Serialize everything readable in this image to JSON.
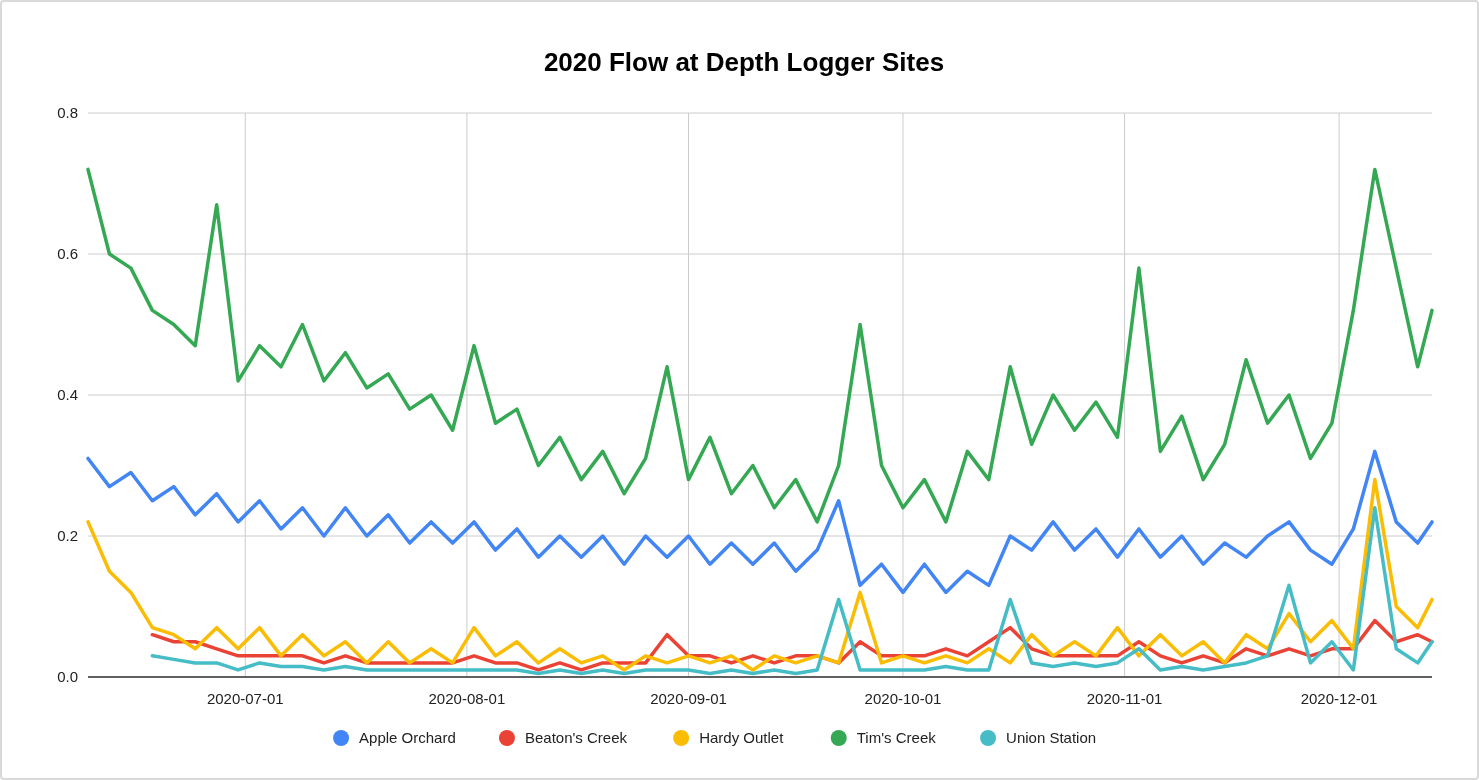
{
  "chart_data": {
    "type": "line",
    "title": "2020 Flow at Depth Logger Sites",
    "x": [
      "2020-06-09",
      "2020-06-12",
      "2020-06-15",
      "2020-06-18",
      "2020-06-21",
      "2020-06-24",
      "2020-06-27",
      "2020-06-30",
      "2020-07-03",
      "2020-07-06",
      "2020-07-09",
      "2020-07-12",
      "2020-07-15",
      "2020-07-18",
      "2020-07-21",
      "2020-07-24",
      "2020-07-27",
      "2020-07-30",
      "2020-08-02",
      "2020-08-05",
      "2020-08-08",
      "2020-08-11",
      "2020-08-14",
      "2020-08-17",
      "2020-08-20",
      "2020-08-23",
      "2020-08-26",
      "2020-08-29",
      "2020-09-01",
      "2020-09-04",
      "2020-09-07",
      "2020-09-10",
      "2020-09-13",
      "2020-09-16",
      "2020-09-19",
      "2020-09-22",
      "2020-09-25",
      "2020-09-28",
      "2020-10-01",
      "2020-10-04",
      "2020-10-07",
      "2020-10-10",
      "2020-10-13",
      "2020-10-16",
      "2020-10-19",
      "2020-10-22",
      "2020-10-25",
      "2020-10-28",
      "2020-10-31",
      "2020-11-03",
      "2020-11-06",
      "2020-11-09",
      "2020-11-12",
      "2020-11-15",
      "2020-11-18",
      "2020-11-21",
      "2020-11-24",
      "2020-11-27",
      "2020-11-30",
      "2020-12-03",
      "2020-12-06",
      "2020-12-09",
      "2020-12-12",
      "2020-12-14"
    ],
    "series": [
      {
        "name": "Apple Orchard",
        "color": "#4285f4",
        "values": [
          0.31,
          0.27,
          0.29,
          0.25,
          0.27,
          0.23,
          0.26,
          0.22,
          0.25,
          0.21,
          0.24,
          0.2,
          0.24,
          0.2,
          0.23,
          0.19,
          0.22,
          0.19,
          0.22,
          0.18,
          0.21,
          0.17,
          0.2,
          0.17,
          0.2,
          0.16,
          0.2,
          0.17,
          0.2,
          0.16,
          0.19,
          0.16,
          0.19,
          0.15,
          0.18,
          0.25,
          0.13,
          0.16,
          0.12,
          0.16,
          0.12,
          0.15,
          0.13,
          0.2,
          0.18,
          0.22,
          0.18,
          0.21,
          0.17,
          0.21,
          0.17,
          0.2,
          0.16,
          0.19,
          0.17,
          0.2,
          0.22,
          0.18,
          0.16,
          0.21,
          0.32,
          0.22,
          0.19,
          0.22
        ]
      },
      {
        "name": "Beaton's Creek",
        "color": "#ea4335",
        "values": [
          null,
          null,
          null,
          0.06,
          0.05,
          0.05,
          0.04,
          0.03,
          0.03,
          0.03,
          0.03,
          0.02,
          0.03,
          0.02,
          0.02,
          0.02,
          0.02,
          0.02,
          0.03,
          0.02,
          0.02,
          0.01,
          0.02,
          0.01,
          0.02,
          0.02,
          0.02,
          0.06,
          0.03,
          0.03,
          0.02,
          0.03,
          0.02,
          0.03,
          0.03,
          0.02,
          0.05,
          0.03,
          0.03,
          0.03,
          0.04,
          0.03,
          0.05,
          0.07,
          0.04,
          0.03,
          0.03,
          0.03,
          0.03,
          0.05,
          0.03,
          0.02,
          0.03,
          0.02,
          0.04,
          0.03,
          0.04,
          0.03,
          0.04,
          0.04,
          0.08,
          0.05,
          0.06,
          0.05
        ]
      },
      {
        "name": "Hardy Outlet",
        "color": "#fbbc04",
        "values": [
          0.22,
          0.15,
          0.12,
          0.07,
          0.06,
          0.04,
          0.07,
          0.04,
          0.07,
          0.03,
          0.06,
          0.03,
          0.05,
          0.02,
          0.05,
          0.02,
          0.04,
          0.02,
          0.07,
          0.03,
          0.05,
          0.02,
          0.04,
          0.02,
          0.03,
          0.01,
          0.03,
          0.02,
          0.03,
          0.02,
          0.03,
          0.01,
          0.03,
          0.02,
          0.03,
          0.02,
          0.12,
          0.02,
          0.03,
          0.02,
          0.03,
          0.02,
          0.04,
          0.02,
          0.06,
          0.03,
          0.05,
          0.03,
          0.07,
          0.03,
          0.06,
          0.03,
          0.05,
          0.02,
          0.06,
          0.04,
          0.09,
          0.05,
          0.08,
          0.04,
          0.28,
          0.1,
          0.07,
          0.11
        ]
      },
      {
        "name": "Tim's Creek",
        "color": "#34a853",
        "values": [
          0.72,
          0.6,
          0.58,
          0.52,
          0.5,
          0.47,
          0.67,
          0.42,
          0.47,
          0.44,
          0.5,
          0.42,
          0.46,
          0.41,
          0.43,
          0.38,
          0.4,
          0.35,
          0.47,
          0.36,
          0.38,
          0.3,
          0.34,
          0.28,
          0.32,
          0.26,
          0.31,
          0.44,
          0.28,
          0.34,
          0.26,
          0.3,
          0.24,
          0.28,
          0.22,
          0.3,
          0.5,
          0.3,
          0.24,
          0.28,
          0.22,
          0.32,
          0.28,
          0.44,
          0.33,
          0.4,
          0.35,
          0.39,
          0.34,
          0.58,
          0.32,
          0.37,
          0.28,
          0.33,
          0.45,
          0.36,
          0.4,
          0.31,
          0.36,
          0.52,
          0.72,
          0.58,
          0.44,
          0.52
        ]
      },
      {
        "name": "Union Station",
        "color": "#46bdc6",
        "values": [
          null,
          null,
          null,
          0.03,
          0.025,
          0.02,
          0.02,
          0.01,
          0.02,
          0.015,
          0.015,
          0.01,
          0.015,
          0.01,
          0.01,
          0.01,
          0.01,
          0.01,
          0.01,
          0.01,
          0.01,
          0.005,
          0.01,
          0.005,
          0.01,
          0.005,
          0.01,
          0.01,
          0.01,
          0.005,
          0.01,
          0.005,
          0.01,
          0.005,
          0.01,
          0.11,
          0.01,
          0.01,
          0.01,
          0.01,
          0.015,
          0.01,
          0.01,
          0.11,
          0.02,
          0.015,
          0.02,
          0.015,
          0.02,
          0.04,
          0.01,
          0.015,
          0.01,
          0.015,
          0.02,
          0.03,
          0.13,
          0.02,
          0.05,
          0.01,
          0.24,
          0.04,
          0.02,
          0.05
        ]
      }
    ],
    "xlim": [
      "2020-06-09",
      "2020-12-14"
    ],
    "xticks": [
      "2020-07-01",
      "2020-08-01",
      "2020-09-01",
      "2020-10-01",
      "2020-11-01",
      "2020-12-01"
    ],
    "ylim": [
      0,
      0.8
    ],
    "yticks": [
      {
        "value": 0,
        "label": "0.0"
      },
      {
        "value": 0.2,
        "label": "0.2"
      },
      {
        "value": 0.4,
        "label": "0.4"
      },
      {
        "value": 0.6,
        "label": "0.6"
      },
      {
        "value": 0.8,
        "label": "0.8"
      }
    ],
    "grid": true,
    "legend": "bottom",
    "marker": "none",
    "line_style": "solid"
  }
}
